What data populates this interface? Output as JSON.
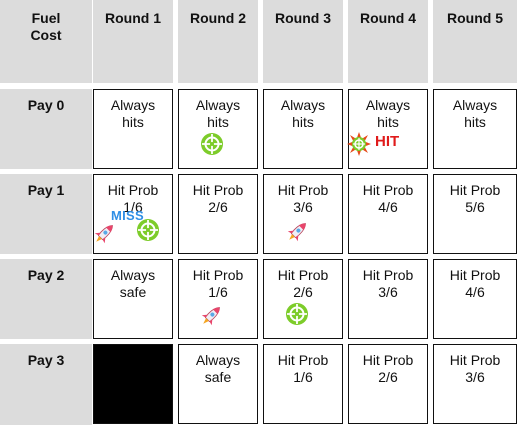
{
  "header": {
    "fuel_cost": [
      "Fuel",
      "Cost"
    ],
    "rounds": [
      "Round 1",
      "Round 2",
      "Round 3",
      "Round 4",
      "Round 5"
    ]
  },
  "rows": [
    {
      "label": "Pay 0",
      "cells": [
        [
          "Always",
          "hits"
        ],
        [
          "Always",
          "hits"
        ],
        [
          "Always",
          "hits"
        ],
        [
          "Always",
          "hits"
        ],
        [
          "Always",
          "hits"
        ]
      ]
    },
    {
      "label": "Pay 1",
      "cells": [
        [
          "Hit Prob",
          "1/6"
        ],
        [
          "Hit Prob",
          "2/6"
        ],
        [
          "Hit Prob",
          "3/6"
        ],
        [
          "Hit Prob",
          "4/6"
        ],
        [
          "Hit Prob",
          "5/6"
        ]
      ]
    },
    {
      "label": "Pay 2",
      "cells": [
        [
          "Always",
          "safe"
        ],
        [
          "Hit Prob",
          "1/6"
        ],
        [
          "Hit Prob",
          "2/6"
        ],
        [
          "Hit Prob",
          "3/6"
        ],
        [
          "Hit Prob",
          "4/6"
        ]
      ]
    },
    {
      "label": "Pay 3",
      "cells": [
        null,
        [
          "Always",
          "safe"
        ],
        [
          "Hit Prob",
          "1/6"
        ],
        [
          "Hit Prob",
          "2/6"
        ],
        [
          "Hit Prob",
          "3/6"
        ]
      ]
    }
  ],
  "markers": {
    "miss_label": "MISS",
    "hit_label": "HIT"
  },
  "colors": {
    "header_bg": "#dcdcdc",
    "target": "#7dcc2a",
    "rocket": "#e8456b",
    "miss": "#2f8fe6",
    "hit": "#e01b1b"
  }
}
